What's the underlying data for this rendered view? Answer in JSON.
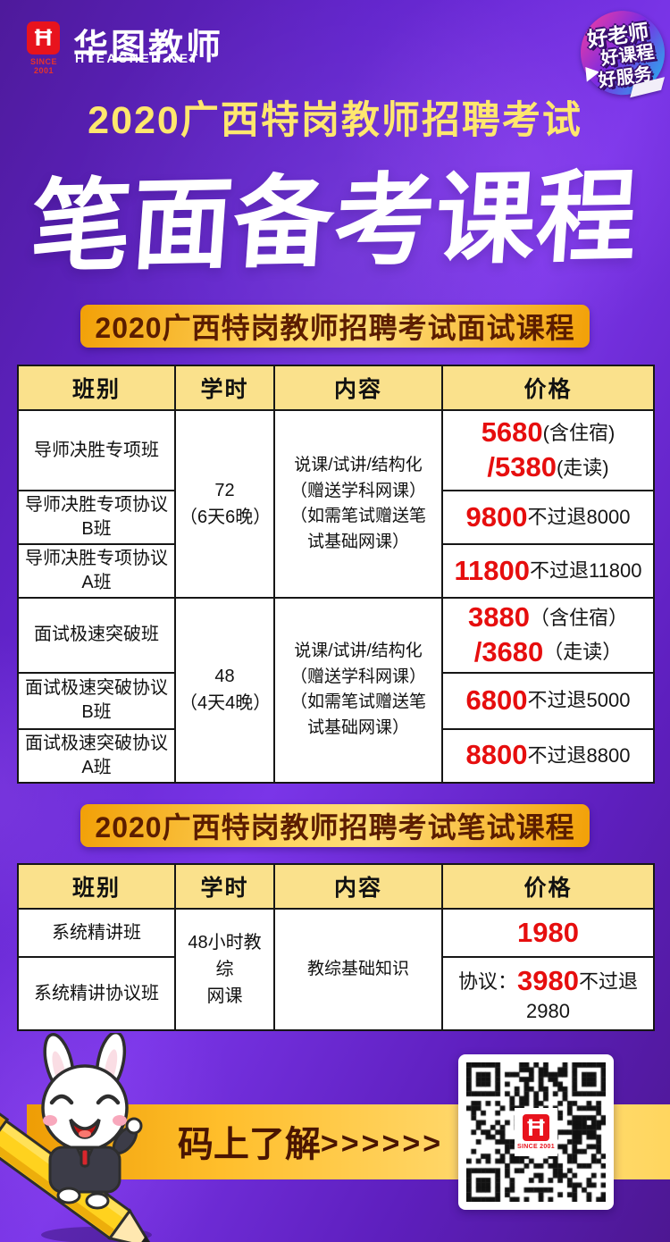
{
  "brand": {
    "logo_monogram": "Ħ",
    "logo_since": "SINCE 2001",
    "name": "华图教师",
    "domain": "HTEACHER.NET",
    "badge_lines": [
      "好老师",
      "好课程",
      "好服务"
    ]
  },
  "hero": {
    "subtitle": "2020广西特岗教师招聘考试",
    "title": "笔面备考课程"
  },
  "colors": {
    "background_purple": "#6224CC",
    "banner_gold": "#F2A007",
    "banner_text_brown": "#5B1D00",
    "table_header_yellow": "#FAE18C",
    "price_red": "#E60E0E",
    "logo_red": "#E8131D",
    "subtitle_yellow": "#FFE76E"
  },
  "t1": {
    "banner": "2020广西特岗教师招聘考试面试课程",
    "headers": [
      "班别",
      "学时",
      "内容",
      "价格"
    ],
    "hours1": "72\n（6天6晚）",
    "hours2": "48\n（4天4晚）",
    "content1": "说课/试讲/结构化\n（赠送学科网课）\n（如需笔试赠送笔\n试基础网课）",
    "content2": "说课/试讲/结构化\n（赠送学科网课）\n（如需笔试赠送笔\n试基础网课）",
    "rows": [
      {
        "name": "导师决胜专项班"
      },
      {
        "name": "导师决胜专项协议B班"
      },
      {
        "name": "导师决胜专项协议A班"
      },
      {
        "name": "面试极速突破班"
      },
      {
        "name": "面试极速突破协议B班"
      },
      {
        "name": "面试极速突破协议A班"
      }
    ],
    "prices": [
      [
        [
          [
            "5680",
            "num"
          ],
          [
            "(含住宿)",
            "txt"
          ]
        ],
        [
          [
            "/5380",
            "num"
          ],
          [
            "(走读)",
            "txt"
          ]
        ]
      ],
      [
        [
          [
            "9800",
            "num"
          ],
          [
            "不过退8000",
            "txt"
          ]
        ]
      ],
      [
        [
          [
            "11800",
            "num"
          ],
          [
            "不过退11800",
            "txt"
          ]
        ]
      ],
      [
        [
          [
            "3880",
            "num"
          ],
          [
            "（含住宿）",
            "txt"
          ]
        ],
        [
          [
            "/3680",
            "num"
          ],
          [
            "（走读）",
            "txt"
          ]
        ]
      ],
      [
        [
          [
            "6800",
            "num"
          ],
          [
            "不过退5000",
            "txt"
          ]
        ]
      ],
      [
        [
          [
            "8800",
            "num"
          ],
          [
            "不过退8800",
            "txt"
          ]
        ]
      ]
    ]
  },
  "t2": {
    "banner": "2020广西特岗教师招聘考试笔试课程",
    "headers": [
      "班别",
      "学时",
      "内容",
      "价格"
    ],
    "hours": "48小时教综\n网课",
    "content": "教综基础知识",
    "rows": [
      {
        "name": "系统精讲班"
      },
      {
        "name": "系统精讲协议班"
      }
    ],
    "prices": [
      [
        [
          [
            "1980",
            "num"
          ]
        ]
      ],
      [
        [
          [
            "协议：",
            "txt"
          ],
          [
            "3980",
            "num"
          ],
          [
            "不过退",
            "txt"
          ]
        ],
        [
          [
            "2980",
            "txt"
          ]
        ]
      ]
    ]
  },
  "footer": {
    "cta": "码上了解",
    "arrows": ">>>>>>"
  }
}
